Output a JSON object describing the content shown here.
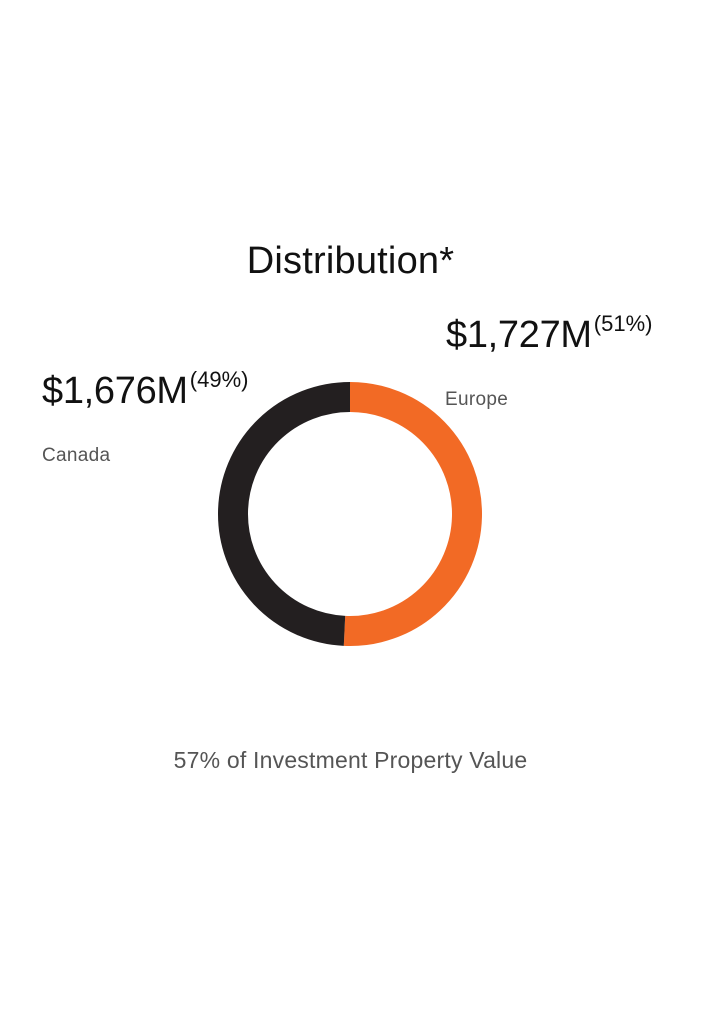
{
  "chart_data": {
    "type": "pie",
    "title": "Distribution*",
    "footnote": "57% of Investment Property Value",
    "slices": [
      {
        "label": "Europe",
        "value_label": "$1,727M",
        "pct_label": "(51%)",
        "value": 1727,
        "percent": 51,
        "color": "#f26a25"
      },
      {
        "label": "Canada",
        "value_label": "$1,676M",
        "pct_label": "(49%)",
        "value": 1676,
        "percent": 49,
        "color": "#231f20"
      }
    ]
  }
}
